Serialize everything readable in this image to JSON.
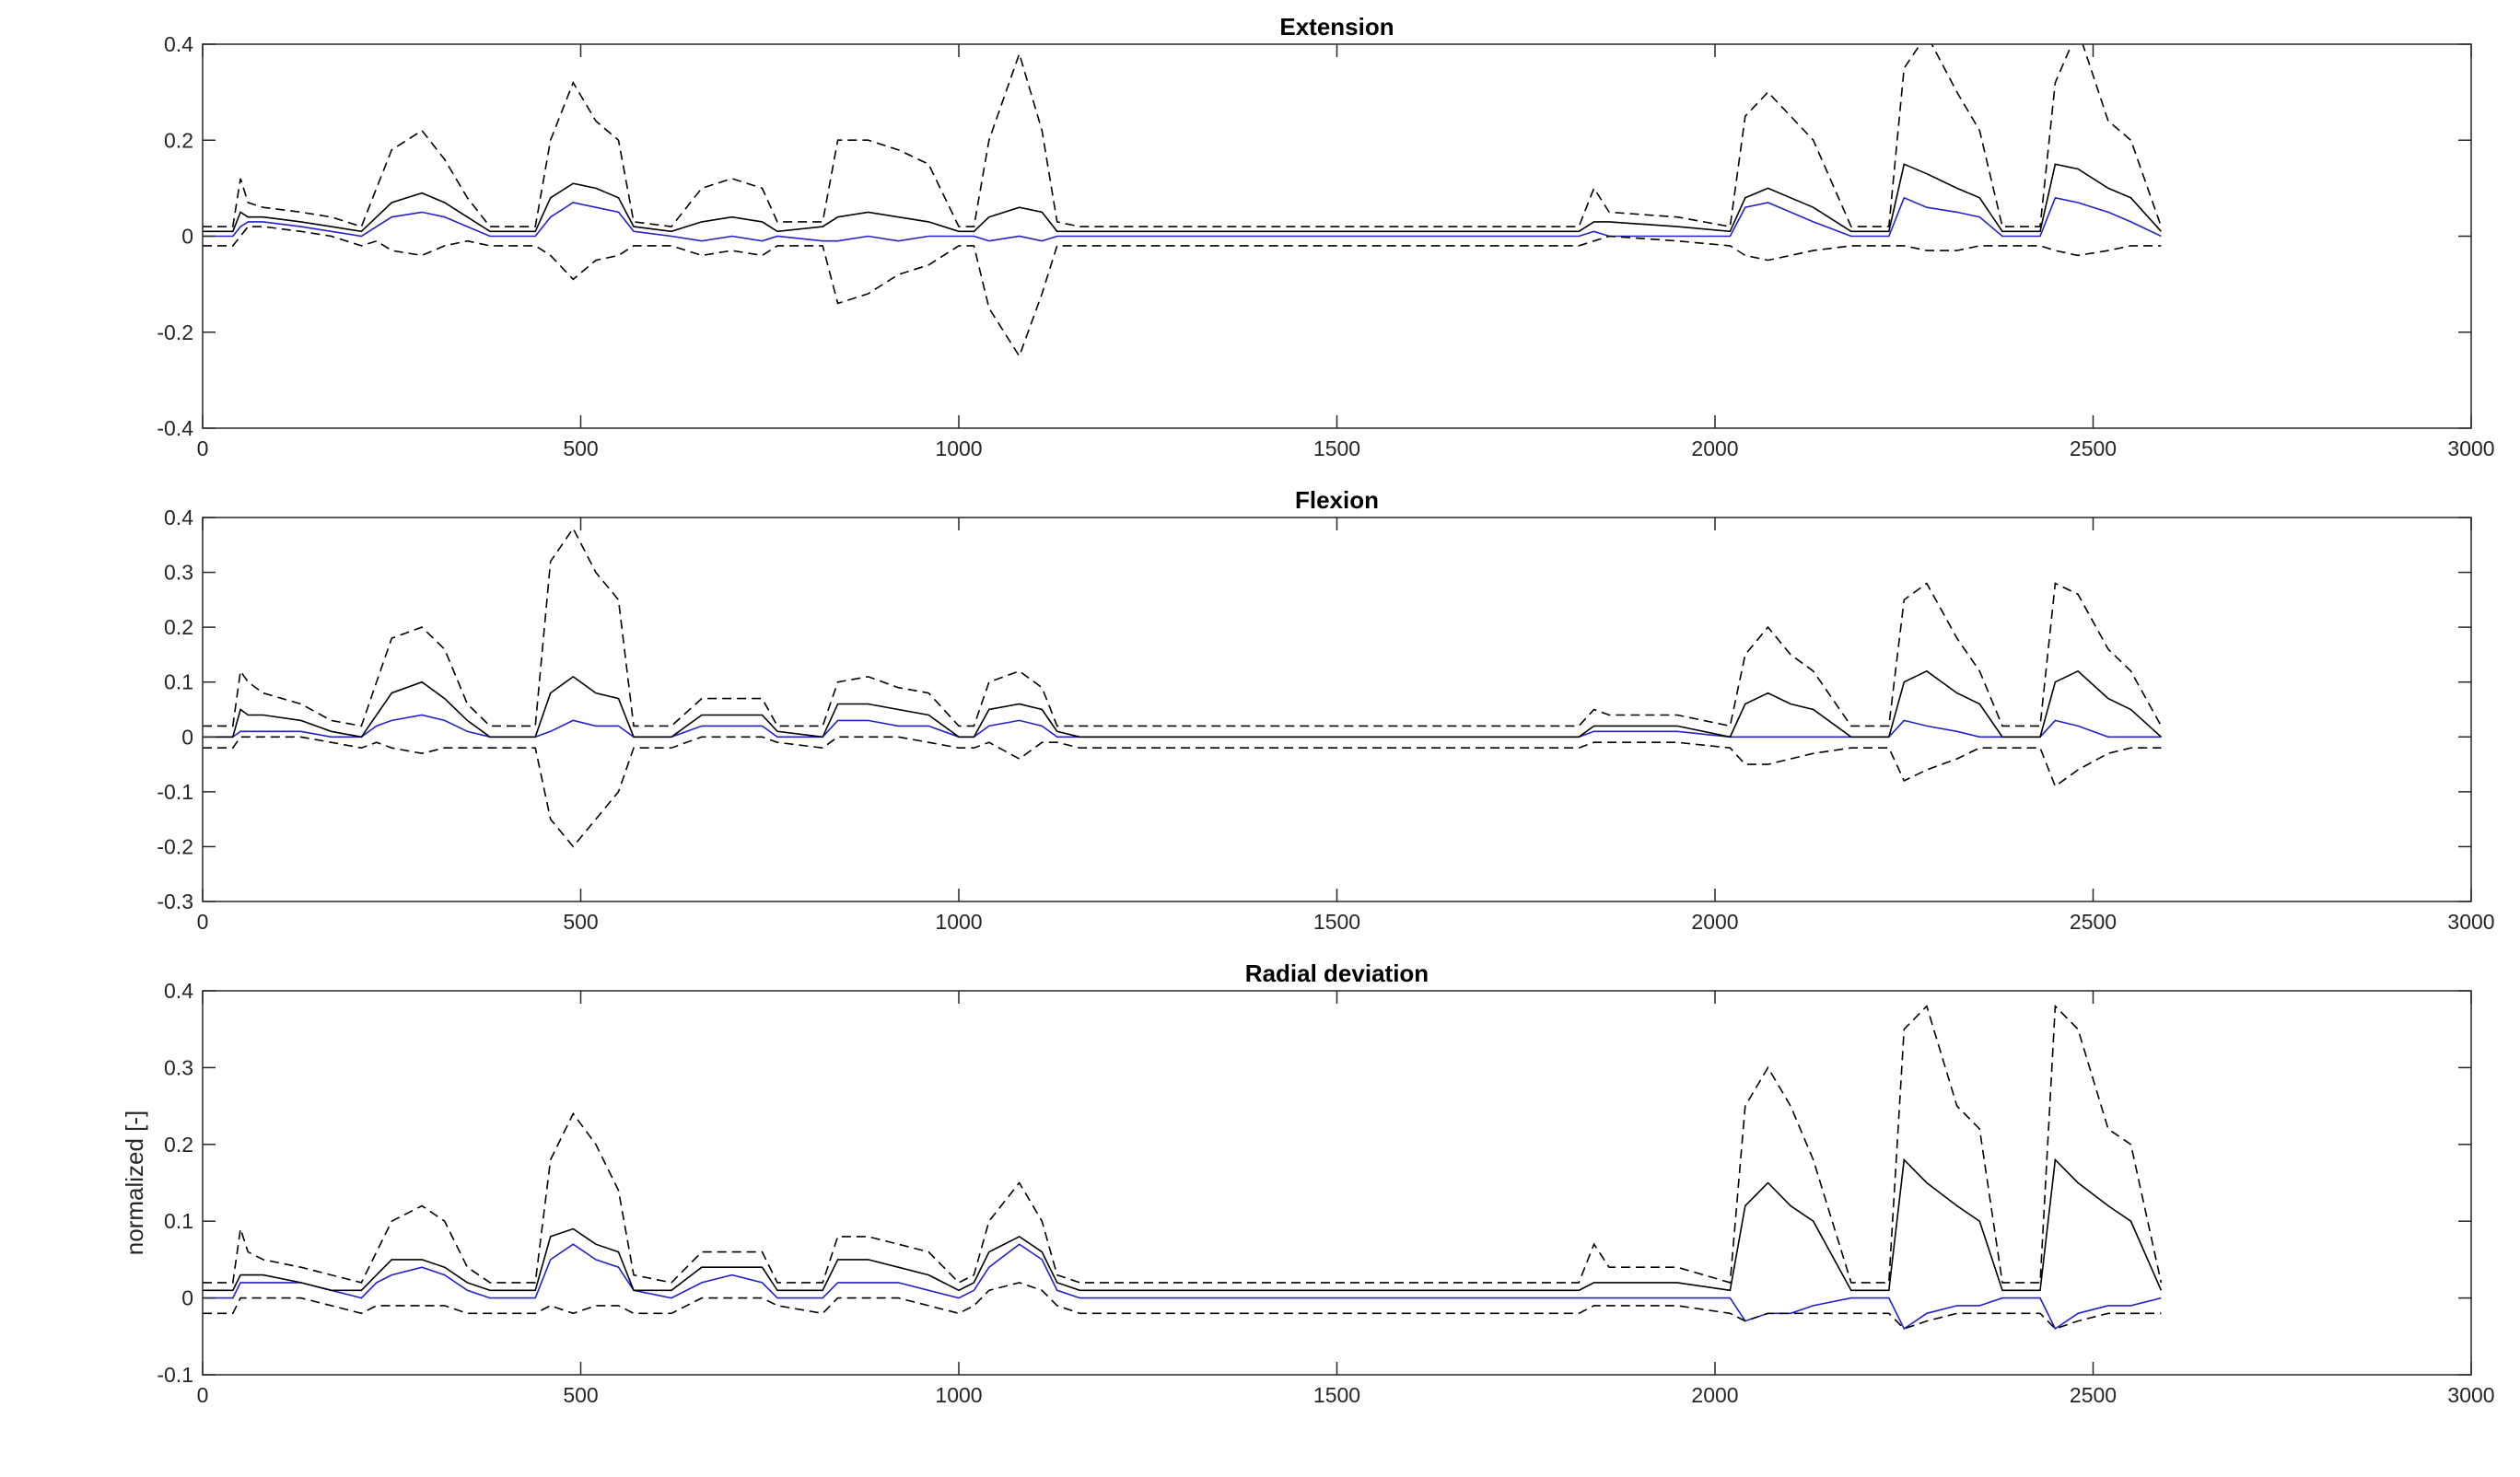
{
  "chart_data": [
    {
      "type": "line",
      "title": "Extension",
      "xlabel": "",
      "ylabel": "",
      "xlim": [
        0,
        3000
      ],
      "ylim": [
        -0.4,
        0.4
      ],
      "xticks": [
        0,
        500,
        1000,
        1500,
        2000,
        2500,
        3000
      ],
      "yticks": [
        -0.4,
        -0.2,
        0,
        0.2,
        0.4
      ],
      "ytick_labels": [
        "-0.4",
        "-0.2",
        "0",
        "0.2",
        "0.4"
      ],
      "grid": false,
      "x": [
        0,
        40,
        50,
        60,
        80,
        130,
        170,
        210,
        230,
        250,
        290,
        320,
        350,
        380,
        440,
        460,
        490,
        520,
        550,
        570,
        620,
        660,
        700,
        740,
        760,
        820,
        840,
        880,
        920,
        960,
        1000,
        1020,
        1040,
        1080,
        1110,
        1130,
        1160,
        1300,
        1500,
        1700,
        1820,
        1840,
        1860,
        1950,
        2020,
        2040,
        2070,
        2100,
        2130,
        2180,
        2230,
        2250,
        2280,
        2320,
        2350,
        2380,
        2430,
        2450,
        2480,
        2520,
        2550,
        2590
      ],
      "series": [
        {
          "style": "solid",
          "color": "#2222cc",
          "values": [
            0.0,
            0.0,
            0.02,
            0.03,
            0.03,
            0.02,
            0.01,
            0.0,
            0.02,
            0.04,
            0.05,
            0.04,
            0.02,
            0.0,
            0.0,
            0.04,
            0.07,
            0.06,
            0.05,
            0.01,
            0.0,
            -0.01,
            0.0,
            -0.01,
            0.0,
            -0.01,
            -0.01,
            0.0,
            -0.01,
            0.0,
            0.0,
            0.0,
            -0.01,
            0.0,
            -0.01,
            0.0,
            0.0,
            0.0,
            0.0,
            0.0,
            0.0,
            0.01,
            0.0,
            0.0,
            0.0,
            0.06,
            0.07,
            0.05,
            0.03,
            0.0,
            0.0,
            0.08,
            0.06,
            0.05,
            0.04,
            0.0,
            0.0,
            0.08,
            0.07,
            0.05,
            0.03,
            0.0
          ]
        },
        {
          "style": "solid",
          "color": "#000000",
          "values": [
            0.01,
            0.01,
            0.05,
            0.04,
            0.04,
            0.03,
            0.02,
            0.01,
            0.04,
            0.07,
            0.09,
            0.07,
            0.04,
            0.01,
            0.01,
            0.08,
            0.11,
            0.1,
            0.08,
            0.02,
            0.01,
            0.03,
            0.04,
            0.03,
            0.01,
            0.02,
            0.04,
            0.05,
            0.04,
            0.03,
            0.01,
            0.01,
            0.04,
            0.06,
            0.05,
            0.01,
            0.01,
            0.01,
            0.01,
            0.01,
            0.01,
            0.03,
            0.03,
            0.02,
            0.01,
            0.08,
            0.1,
            0.08,
            0.06,
            0.01,
            0.01,
            0.15,
            0.13,
            0.1,
            0.08,
            0.01,
            0.01,
            0.15,
            0.14,
            0.1,
            0.08,
            0.01
          ]
        },
        {
          "style": "dashed",
          "color": "#000000",
          "values": [
            0.02,
            0.02,
            0.12,
            0.07,
            0.06,
            0.05,
            0.04,
            0.02,
            0.1,
            0.18,
            0.22,
            0.16,
            0.08,
            0.02,
            0.02,
            0.2,
            0.32,
            0.24,
            0.2,
            0.03,
            0.02,
            0.1,
            0.12,
            0.1,
            0.03,
            0.03,
            0.2,
            0.2,
            0.18,
            0.15,
            0.02,
            0.02,
            0.2,
            0.38,
            0.22,
            0.03,
            0.02,
            0.02,
            0.02,
            0.02,
            0.02,
            0.1,
            0.05,
            0.04,
            0.02,
            0.25,
            0.3,
            0.25,
            0.2,
            0.02,
            0.02,
            0.35,
            0.42,
            0.3,
            0.22,
            0.02,
            0.02,
            0.32,
            0.43,
            0.24,
            0.2,
            0.02
          ]
        },
        {
          "style": "dashed",
          "color": "#000000",
          "values": [
            -0.02,
            -0.02,
            0.0,
            0.02,
            0.02,
            0.01,
            0.0,
            -0.02,
            -0.01,
            -0.03,
            -0.04,
            -0.02,
            -0.01,
            -0.02,
            -0.02,
            -0.04,
            -0.09,
            -0.05,
            -0.04,
            -0.02,
            -0.02,
            -0.04,
            -0.03,
            -0.04,
            -0.02,
            -0.02,
            -0.14,
            -0.12,
            -0.08,
            -0.06,
            -0.02,
            -0.02,
            -0.15,
            -0.25,
            -0.12,
            -0.02,
            -0.02,
            -0.02,
            -0.02,
            -0.02,
            -0.02,
            -0.01,
            0.0,
            -0.01,
            -0.02,
            -0.04,
            -0.05,
            -0.04,
            -0.03,
            -0.02,
            -0.02,
            -0.02,
            -0.03,
            -0.03,
            -0.02,
            -0.02,
            -0.02,
            -0.03,
            -0.04,
            -0.03,
            -0.02,
            -0.02
          ]
        }
      ]
    },
    {
      "type": "line",
      "title": "Flexion",
      "xlabel": "",
      "ylabel": "",
      "xlim": [
        0,
        3000
      ],
      "ylim": [
        -0.3,
        0.4
      ],
      "xticks": [
        0,
        500,
        1000,
        1500,
        2000,
        2500,
        3000
      ],
      "yticks": [
        -0.3,
        -0.2,
        -0.1,
        0,
        0.1,
        0.2,
        0.3,
        0.4
      ],
      "ytick_labels": [
        "-0.3",
        "-0.2",
        "-0.1",
        "0",
        "0.1",
        "0.2",
        "0.3",
        "0.4"
      ],
      "grid": false,
      "x": [
        0,
        40,
        50,
        60,
        80,
        130,
        170,
        210,
        230,
        250,
        290,
        320,
        350,
        380,
        440,
        460,
        490,
        520,
        550,
        570,
        620,
        660,
        700,
        740,
        760,
        820,
        840,
        880,
        920,
        960,
        1000,
        1020,
        1040,
        1080,
        1110,
        1130,
        1160,
        1300,
        1500,
        1700,
        1820,
        1840,
        1860,
        1950,
        2020,
        2040,
        2070,
        2100,
        2130,
        2180,
        2230,
        2250,
        2280,
        2320,
        2350,
        2380,
        2430,
        2450,
        2480,
        2520,
        2550,
        2590
      ],
      "series": [
        {
          "style": "solid",
          "color": "#2222cc",
          "values": [
            0.0,
            0.0,
            0.01,
            0.01,
            0.01,
            0.01,
            0.0,
            0.0,
            0.02,
            0.03,
            0.04,
            0.03,
            0.01,
            0.0,
            0.0,
            0.01,
            0.03,
            0.02,
            0.02,
            0.0,
            0.0,
            0.02,
            0.02,
            0.02,
            0.0,
            0.0,
            0.03,
            0.03,
            0.02,
            0.02,
            0.0,
            0.0,
            0.02,
            0.03,
            0.02,
            0.0,
            0.0,
            0.0,
            0.0,
            0.0,
            0.0,
            0.01,
            0.01,
            0.01,
            0.0,
            0.0,
            0.0,
            0.0,
            0.0,
            0.0,
            0.0,
            0.03,
            0.02,
            0.01,
            0.0,
            0.0,
            0.0,
            0.03,
            0.02,
            0.0,
            0.0,
            0.0
          ]
        },
        {
          "style": "solid",
          "color": "#000000",
          "values": [
            0.0,
            0.0,
            0.05,
            0.04,
            0.04,
            0.03,
            0.01,
            0.0,
            0.04,
            0.08,
            0.1,
            0.07,
            0.03,
            0.0,
            0.0,
            0.08,
            0.11,
            0.08,
            0.07,
            0.0,
            0.0,
            0.04,
            0.04,
            0.04,
            0.01,
            0.0,
            0.06,
            0.06,
            0.05,
            0.04,
            0.0,
            0.0,
            0.05,
            0.06,
            0.05,
            0.01,
            0.0,
            0.0,
            0.0,
            0.0,
            0.0,
            0.02,
            0.02,
            0.02,
            0.0,
            0.06,
            0.08,
            0.06,
            0.05,
            0.0,
            0.0,
            0.1,
            0.12,
            0.08,
            0.06,
            0.0,
            0.0,
            0.1,
            0.12,
            0.07,
            0.05,
            0.0
          ]
        },
        {
          "style": "dashed",
          "color": "#000000",
          "values": [
            0.02,
            0.02,
            0.12,
            0.1,
            0.08,
            0.06,
            0.03,
            0.02,
            0.1,
            0.18,
            0.2,
            0.16,
            0.06,
            0.02,
            0.02,
            0.32,
            0.38,
            0.3,
            0.25,
            0.02,
            0.02,
            0.07,
            0.07,
            0.07,
            0.02,
            0.02,
            0.1,
            0.11,
            0.09,
            0.08,
            0.02,
            0.02,
            0.1,
            0.12,
            0.09,
            0.02,
            0.02,
            0.02,
            0.02,
            0.02,
            0.02,
            0.05,
            0.04,
            0.04,
            0.02,
            0.15,
            0.2,
            0.15,
            0.12,
            0.02,
            0.02,
            0.25,
            0.28,
            0.18,
            0.12,
            0.02,
            0.02,
            0.28,
            0.26,
            0.16,
            0.12,
            0.02
          ]
        },
        {
          "style": "dashed",
          "color": "#000000",
          "values": [
            -0.02,
            -0.02,
            0.0,
            0.0,
            0.0,
            0.0,
            -0.01,
            -0.02,
            -0.01,
            -0.02,
            -0.03,
            -0.02,
            -0.02,
            -0.02,
            -0.02,
            -0.15,
            -0.2,
            -0.15,
            -0.1,
            -0.02,
            -0.02,
            0.0,
            0.0,
            0.0,
            -0.01,
            -0.02,
            0.0,
            0.0,
            0.0,
            -0.01,
            -0.02,
            -0.02,
            -0.01,
            -0.04,
            -0.01,
            -0.01,
            -0.02,
            -0.02,
            -0.02,
            -0.02,
            -0.02,
            -0.01,
            -0.01,
            -0.01,
            -0.02,
            -0.05,
            -0.05,
            -0.04,
            -0.03,
            -0.02,
            -0.02,
            -0.08,
            -0.06,
            -0.04,
            -0.02,
            -0.02,
            -0.02,
            -0.09,
            -0.06,
            -0.03,
            -0.02,
            -0.02
          ]
        }
      ]
    },
    {
      "type": "line",
      "title": "Radial deviation",
      "xlabel": "",
      "ylabel": "normalized [-]",
      "xlim": [
        0,
        3000
      ],
      "ylim": [
        -0.1,
        0.4
      ],
      "xticks": [
        0,
        500,
        1000,
        1500,
        2000,
        2500,
        3000
      ],
      "yticks": [
        -0.1,
        0,
        0.1,
        0.2,
        0.3,
        0.4
      ],
      "ytick_labels": [
        "-0.1",
        "0",
        "0.1",
        "0.2",
        "0.3",
        "0.4"
      ],
      "grid": false,
      "x": [
        0,
        40,
        50,
        60,
        80,
        130,
        170,
        210,
        230,
        250,
        290,
        320,
        350,
        380,
        440,
        460,
        490,
        520,
        550,
        570,
        620,
        660,
        700,
        740,
        760,
        820,
        840,
        880,
        920,
        960,
        1000,
        1020,
        1040,
        1080,
        1110,
        1130,
        1160,
        1300,
        1500,
        1700,
        1820,
        1840,
        1860,
        1950,
        2020,
        2040,
        2070,
        2100,
        2130,
        2180,
        2230,
        2250,
        2280,
        2320,
        2350,
        2380,
        2430,
        2450,
        2480,
        2520,
        2550,
        2590
      ],
      "series": [
        {
          "style": "solid",
          "color": "#2222cc",
          "values": [
            0.0,
            0.0,
            0.02,
            0.02,
            0.02,
            0.02,
            0.01,
            0.0,
            0.02,
            0.03,
            0.04,
            0.03,
            0.01,
            0.0,
            0.0,
            0.05,
            0.07,
            0.05,
            0.04,
            0.01,
            0.0,
            0.02,
            0.03,
            0.02,
            0.0,
            0.0,
            0.02,
            0.02,
            0.02,
            0.01,
            0.0,
            0.01,
            0.04,
            0.07,
            0.05,
            0.01,
            0.0,
            0.0,
            0.0,
            0.0,
            0.0,
            0.0,
            0.0,
            0.0,
            0.0,
            -0.03,
            -0.02,
            -0.02,
            -0.01,
            0.0,
            0.0,
            -0.04,
            -0.02,
            -0.01,
            -0.01,
            0.0,
            0.0,
            -0.04,
            -0.02,
            -0.01,
            -0.01,
            0.0
          ]
        },
        {
          "style": "solid",
          "color": "#000000",
          "values": [
            0.01,
            0.01,
            0.03,
            0.03,
            0.03,
            0.02,
            0.01,
            0.01,
            0.03,
            0.05,
            0.05,
            0.04,
            0.02,
            0.01,
            0.01,
            0.08,
            0.09,
            0.07,
            0.06,
            0.01,
            0.01,
            0.04,
            0.04,
            0.04,
            0.01,
            0.01,
            0.05,
            0.05,
            0.04,
            0.03,
            0.01,
            0.02,
            0.06,
            0.08,
            0.06,
            0.02,
            0.01,
            0.01,
            0.01,
            0.01,
            0.01,
            0.02,
            0.02,
            0.02,
            0.01,
            0.12,
            0.15,
            0.12,
            0.1,
            0.01,
            0.01,
            0.18,
            0.15,
            0.12,
            0.1,
            0.01,
            0.01,
            0.18,
            0.15,
            0.12,
            0.1,
            0.01
          ]
        },
        {
          "style": "dashed",
          "color": "#000000",
          "values": [
            0.02,
            0.02,
            0.09,
            0.06,
            0.05,
            0.04,
            0.03,
            0.02,
            0.06,
            0.1,
            0.12,
            0.1,
            0.04,
            0.02,
            0.02,
            0.18,
            0.24,
            0.2,
            0.14,
            0.03,
            0.02,
            0.06,
            0.06,
            0.06,
            0.02,
            0.02,
            0.08,
            0.08,
            0.07,
            0.06,
            0.02,
            0.03,
            0.1,
            0.15,
            0.1,
            0.03,
            0.02,
            0.02,
            0.02,
            0.02,
            0.02,
            0.07,
            0.04,
            0.04,
            0.02,
            0.25,
            0.3,
            0.25,
            0.18,
            0.02,
            0.02,
            0.35,
            0.38,
            0.25,
            0.22,
            0.02,
            0.02,
            0.38,
            0.35,
            0.22,
            0.2,
            0.02
          ]
        },
        {
          "style": "dashed",
          "color": "#000000",
          "values": [
            -0.02,
            -0.02,
            0.0,
            0.0,
            0.0,
            0.0,
            -0.01,
            -0.02,
            -0.01,
            -0.01,
            -0.01,
            -0.01,
            -0.02,
            -0.02,
            -0.02,
            -0.01,
            -0.02,
            -0.01,
            -0.01,
            -0.02,
            -0.02,
            0.0,
            0.0,
            0.0,
            -0.01,
            -0.02,
            0.0,
            0.0,
            0.0,
            -0.01,
            -0.02,
            -0.01,
            0.01,
            0.02,
            0.01,
            -0.01,
            -0.02,
            -0.02,
            -0.02,
            -0.02,
            -0.02,
            -0.01,
            -0.01,
            -0.01,
            -0.02,
            -0.03,
            -0.02,
            -0.02,
            -0.02,
            -0.02,
            -0.02,
            -0.04,
            -0.03,
            -0.02,
            -0.02,
            -0.02,
            -0.02,
            -0.04,
            -0.03,
            -0.02,
            -0.02,
            -0.02
          ]
        }
      ]
    }
  ]
}
